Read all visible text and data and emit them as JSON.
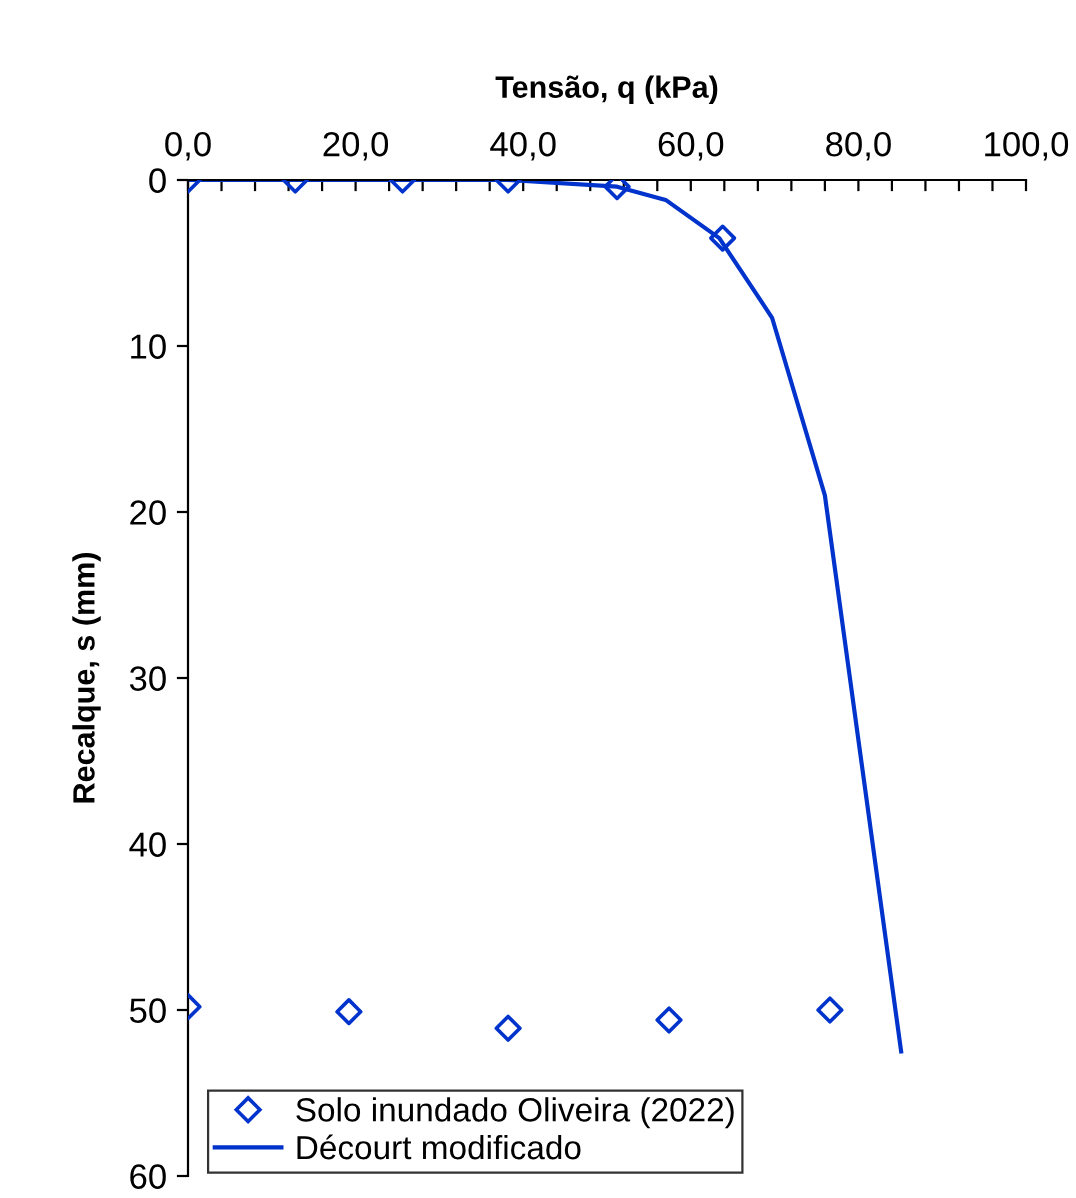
{
  "chart_data": {
    "type": "scatter",
    "xlabel": "Tensão, q (kPa)",
    "ylabel": "Recalque, s (mm)",
    "xlim": [
      0,
      100
    ],
    "ylim": [
      60,
      0
    ],
    "xticks": [
      {
        "value": 0,
        "label": "0,0"
      },
      {
        "value": 4,
        "label": null
      },
      {
        "value": 8,
        "label": null
      },
      {
        "value": 12,
        "label": null
      },
      {
        "value": 16,
        "label": null
      },
      {
        "value": 20,
        "label": "20,0"
      },
      {
        "value": 24,
        "label": null
      },
      {
        "value": 28,
        "label": null
      },
      {
        "value": 32,
        "label": null
      },
      {
        "value": 36,
        "label": null
      },
      {
        "value": 40,
        "label": "40,0"
      },
      {
        "value": 44,
        "label": null
      },
      {
        "value": 48,
        "label": null
      },
      {
        "value": 52,
        "label": null
      },
      {
        "value": 56,
        "label": null
      },
      {
        "value": 60,
        "label": "60,0"
      },
      {
        "value": 64,
        "label": null
      },
      {
        "value": 68,
        "label": null
      },
      {
        "value": 72,
        "label": null
      },
      {
        "value": 76,
        "label": null
      },
      {
        "value": 80,
        "label": "80,0"
      },
      {
        "value": 84,
        "label": null
      },
      {
        "value": 88,
        "label": null
      },
      {
        "value": 92,
        "label": null
      },
      {
        "value": 96,
        "label": null
      },
      {
        "value": 100,
        "label": "100,0"
      }
    ],
    "yticks": [
      0,
      10,
      20,
      30,
      40,
      50,
      60
    ],
    "grid": false,
    "legend": "bottom left",
    "series": [
      {
        "name": "Solo inundado Oliveira (2022)",
        "marker": "diamond",
        "color": "#0033cc",
        "x": [
          0,
          12.8,
          25.6,
          38.2,
          51.2,
          63.8,
          0,
          19.2,
          38.2,
          57.4,
          76.6
        ],
        "values": [
          0,
          0,
          0,
          0,
          0.4,
          3.5,
          49.8,
          50.1,
          51.1,
          50.6,
          50.0
        ]
      },
      {
        "name": "Décourt modificado",
        "type": "line",
        "marker": "none",
        "line_style": "solid",
        "color": "#0033cc",
        "x": [
          0,
          12.8,
          25.6,
          38.2,
          51.2,
          57.0,
          63.4,
          69.7,
          76.0,
          85.1
        ],
        "values": [
          0,
          0,
          0,
          0,
          0.4,
          1.2,
          3.5,
          8.3,
          19.0,
          52.5
        ]
      }
    ]
  }
}
